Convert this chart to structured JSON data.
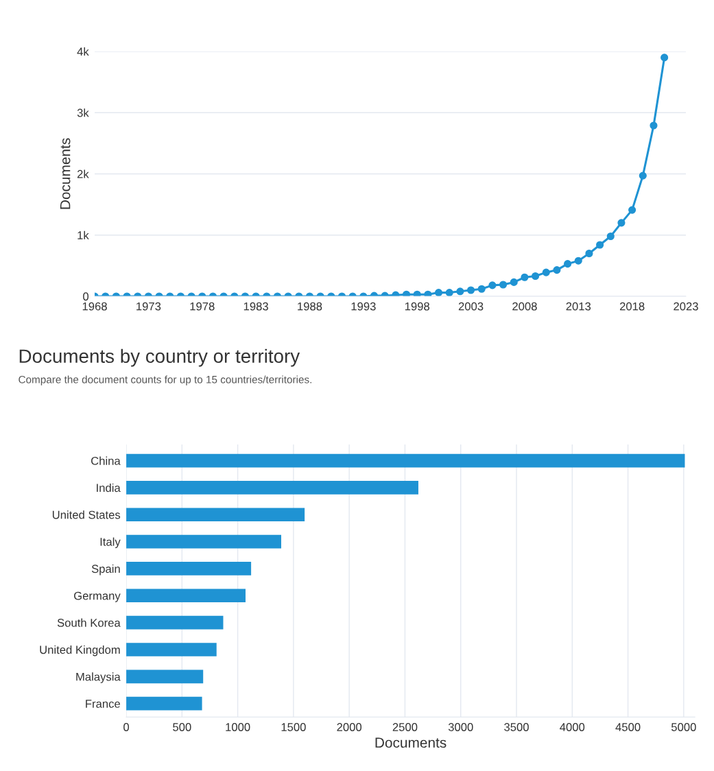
{
  "chart_data": [
    {
      "type": "line",
      "ylabel": "Documents",
      "x": [
        1968,
        1969,
        1970,
        1971,
        1972,
        1973,
        1974,
        1975,
        1976,
        1977,
        1978,
        1979,
        1980,
        1981,
        1982,
        1983,
        1984,
        1985,
        1986,
        1987,
        1988,
        1989,
        1990,
        1991,
        1992,
        1993,
        1994,
        1995,
        1996,
        1997,
        1998,
        1999,
        2000,
        2001,
        2002,
        2003,
        2004,
        2005,
        2006,
        2007,
        2008,
        2009,
        2010,
        2011,
        2012,
        2013,
        2014,
        2015,
        2016,
        2017,
        2018,
        2019,
        2020,
        2021
      ],
      "series": [
        {
          "color": "#1f93d3",
          "values": [
            0,
            0,
            0,
            0,
            0,
            0,
            0,
            0,
            0,
            0,
            0,
            0,
            0,
            0,
            0,
            0,
            0,
            0,
            0,
            0,
            0,
            0,
            0,
            0,
            0,
            0,
            10,
            10,
            20,
            30,
            30,
            30,
            60,
            60,
            80,
            100,
            120,
            180,
            190,
            230,
            310,
            330,
            390,
            430,
            530,
            580,
            700,
            840,
            980,
            1200,
            1410,
            1970,
            2790,
            3900
          ]
        }
      ],
      "xlim": [
        1968,
        2023
      ],
      "xticks": [
        1968,
        1973,
        1978,
        1983,
        1988,
        1993,
        1998,
        2003,
        2008,
        2013,
        2018,
        2023
      ],
      "ylim": [
        0,
        4000
      ],
      "yticks": [
        {
          "value": 0,
          "label": "0"
        },
        {
          "value": 1000,
          "label": "1k"
        },
        {
          "value": 2000,
          "label": "2k"
        },
        {
          "value": 3000,
          "label": "3k"
        },
        {
          "value": 4000,
          "label": "4k"
        }
      ],
      "grid": "y",
      "marker": "circle",
      "line_style": "solid",
      "legend": false
    },
    {
      "type": "bar",
      "orientation": "horizontal",
      "title": "Documents by country or territory",
      "subtitle": "Compare the document counts for up to 15 countries/territories.",
      "xlabel": "Documents",
      "categories": [
        "China",
        "India",
        "United States",
        "Italy",
        "Spain",
        "Germany",
        "South Korea",
        "United Kingdom",
        "Malaysia",
        "France"
      ],
      "values": [
        5010,
        2620,
        1600,
        1390,
        1120,
        1070,
        870,
        810,
        690,
        680
      ],
      "color": "#1f93d3",
      "xlim": [
        0,
        5100
      ],
      "xticks": [
        0,
        500,
        1000,
        1500,
        2000,
        2500,
        3000,
        3500,
        4000,
        4500,
        5000
      ],
      "grid": "x",
      "legend": false
    }
  ]
}
